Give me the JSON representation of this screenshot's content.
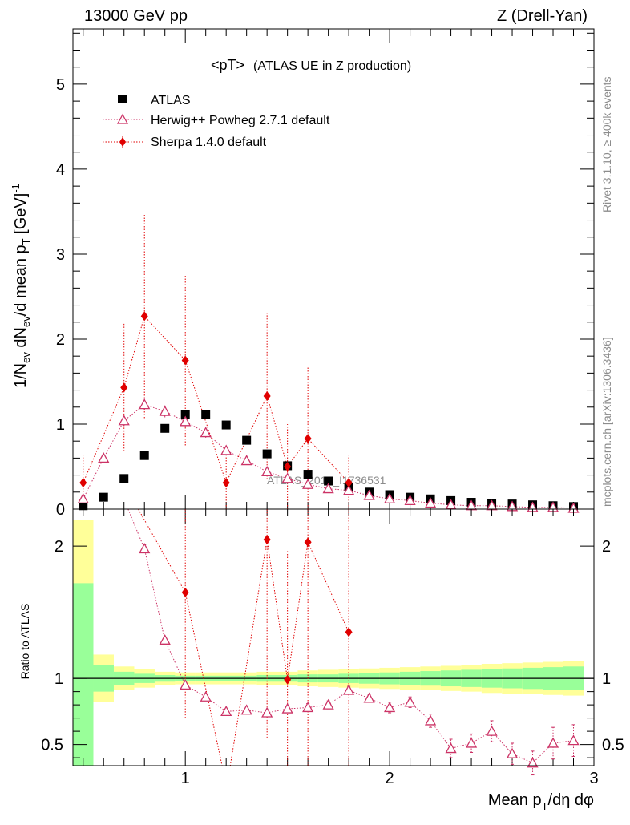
{
  "header": {
    "left": "13000 GeV pp",
    "right": "Z (Drell-Yan)"
  },
  "side_labels": {
    "rivet": "Rivet 3.1.10, ≥ 400k events",
    "mcplots": "mcplots.cern.ch [arXiv:1306.3436]"
  },
  "watermark": "ATLAS_2019_I1736531",
  "chart_data": [
    {
      "type": "scatter",
      "panel": "main",
      "title": "<pT> (ATLAS UE in Z production)",
      "title_main": "<pT>",
      "title_sub": "(ATLAS UE in Z production)",
      "ylabel": "1/N_ev dN_ev/d mean p_T [GeV]^-1",
      "xlim": [
        0.45,
        3.0
      ],
      "ylim": [
        0,
        5.65
      ],
      "yticks": [
        0,
        1,
        2,
        3,
        4,
        5
      ],
      "ytick_labels": [
        "0",
        "1",
        "2",
        "3",
        "4",
        "5"
      ],
      "legend": [
        {
          "label": "ATLAS",
          "color": "#000000",
          "marker": "square"
        },
        {
          "label": "Herwig++ Powheg 2.7.1 default",
          "color": "#cc3366",
          "marker": "open-triangle"
        },
        {
          "label": "Sherpa 1.4.0 default",
          "color": "#e00000",
          "marker": "diamond"
        }
      ],
      "series": [
        {
          "name": "ATLAS",
          "color": "#000000",
          "x": [
            0.5,
            0.6,
            0.7,
            0.8,
            0.9,
            1.0,
            1.1,
            1.2,
            1.3,
            1.4,
            1.5,
            1.6,
            1.7,
            1.8,
            1.9,
            2.0,
            2.1,
            2.2,
            2.3,
            2.4,
            2.5,
            2.6,
            2.7,
            2.8,
            2.9
          ],
          "y": [
            0.04,
            0.14,
            0.36,
            0.63,
            0.95,
            1.11,
            1.11,
            0.99,
            0.81,
            0.65,
            0.51,
            0.41,
            0.33,
            0.26,
            0.2,
            0.17,
            0.14,
            0.12,
            0.1,
            0.08,
            0.07,
            0.06,
            0.05,
            0.04,
            0.03
          ]
        },
        {
          "name": "Herwig++ Powheg 2.7.1 default",
          "color": "#cc3366",
          "x": [
            0.5,
            0.6,
            0.7,
            0.8,
            0.9,
            1.0,
            1.1,
            1.2,
            1.3,
            1.4,
            1.5,
            1.6,
            1.7,
            1.8,
            1.9,
            2.0,
            2.1,
            2.2,
            2.3,
            2.4,
            2.5,
            2.6,
            2.7,
            2.8,
            2.9
          ],
          "y": [
            0.12,
            0.6,
            1.04,
            1.23,
            1.15,
            1.03,
            0.9,
            0.69,
            0.57,
            0.44,
            0.36,
            0.29,
            0.24,
            0.22,
            0.16,
            0.12,
            0.1,
            0.07,
            0.05,
            0.04,
            0.04,
            0.03,
            0.02,
            0.02,
            0.01
          ],
          "err": [
            0.03,
            0.05,
            0.06,
            0.07,
            0.07,
            0.06,
            0.06,
            0.05,
            0.04,
            0.04,
            0.03,
            0.03,
            0.03,
            0.03,
            0.02,
            0.02,
            0.02,
            0.01,
            0.01,
            0.01,
            0.01,
            0.01,
            0.01,
            0.01,
            0.01
          ]
        },
        {
          "name": "Sherpa 1.4.0 default",
          "color": "#e00000",
          "x": [
            0.5,
            0.7,
            0.8,
            1.0,
            1.2,
            1.4,
            1.5,
            1.6,
            1.8
          ],
          "y": [
            0.31,
            1.43,
            2.27,
            1.75,
            0.31,
            1.33,
            0.5,
            0.83,
            0.31
          ],
          "err": [
            0.32,
            0.75,
            1.2,
            1.0,
            0.32,
            0.98,
            0.5,
            0.84,
            0.32
          ]
        }
      ]
    },
    {
      "type": "scatter",
      "panel": "ratio",
      "ylabel": "Ratio to ATLAS",
      "xlabel": "Mean p_T/dη dφ",
      "xlim": [
        0.45,
        3.0
      ],
      "ylim": [
        0.34,
        2.28
      ],
      "reference_line": 1,
      "yticks": [
        0.5,
        1,
        2
      ],
      "ytick_labels": [
        "0.5",
        "1",
        "2"
      ],
      "xticks": [
        1,
        2,
        3
      ],
      "xtick_labels": [
        "1",
        "2",
        "3"
      ],
      "bands": {
        "bin_edges": [
          0.45,
          0.55,
          0.65,
          0.75,
          0.85,
          0.95,
          1.05,
          1.15,
          1.25,
          1.35,
          1.45,
          1.55,
          1.65,
          1.75,
          1.85,
          1.95,
          2.05,
          2.15,
          2.25,
          2.35,
          2.45,
          2.55,
          2.65,
          2.75,
          2.85,
          2.95
        ],
        "stat_half_width": [
          0.72,
          0.1,
          0.05,
          0.035,
          0.025,
          0.02,
          0.02,
          0.02,
          0.02,
          0.025,
          0.025,
          0.03,
          0.03,
          0.035,
          0.04,
          0.045,
          0.05,
          0.055,
          0.06,
          0.065,
          0.07,
          0.075,
          0.08,
          0.085,
          0.09
        ],
        "total_half_width": [
          1.2,
          0.18,
          0.09,
          0.07,
          0.05,
          0.045,
          0.045,
          0.045,
          0.045,
          0.05,
          0.05,
          0.06,
          0.065,
          0.07,
          0.075,
          0.08,
          0.085,
          0.09,
          0.095,
          0.1,
          0.11,
          0.115,
          0.12,
          0.125,
          0.13
        ],
        "stat_color": "#99ff99",
        "total_color": "#ffff99"
      },
      "series": [
        {
          "name": "Herwig++ Powheg 2.7.1 default",
          "color": "#cc3366",
          "x": [
            0.8,
            0.9,
            1.0,
            1.1,
            1.2,
            1.3,
            1.4,
            1.5,
            1.6,
            1.7,
            1.8,
            1.9,
            2.0,
            2.1,
            2.2,
            2.3,
            2.4,
            2.5,
            2.6,
            2.7,
            2.8,
            2.9
          ],
          "y": [
            1.98,
            1.29,
            0.95,
            0.86,
            0.75,
            0.76,
            0.74,
            0.77,
            0.78,
            0.8,
            0.91,
            0.85,
            0.78,
            0.82,
            0.68,
            0.47,
            0.51,
            0.6,
            0.43,
            0.36,
            0.51,
            0.53
          ],
          "err": [
            0.03,
            0.02,
            0.02,
            0.02,
            0.02,
            0.02,
            0.02,
            0.02,
            0.03,
            0.03,
            0.03,
            0.03,
            0.04,
            0.04,
            0.05,
            0.07,
            0.07,
            0.08,
            0.08,
            0.09,
            0.12,
            0.12
          ]
        },
        {
          "name": "Sherpa 1.4.0 default",
          "color": "#e00000",
          "x": [
            1.0,
            1.4,
            1.5,
            1.6,
            1.8
          ],
          "y": [
            1.65,
            2.05,
            0.99,
            2.03,
            1.35
          ],
          "err": [
            0.95,
            1.5,
            0.98,
            2.0,
            1.4
          ]
        }
      ]
    }
  ]
}
